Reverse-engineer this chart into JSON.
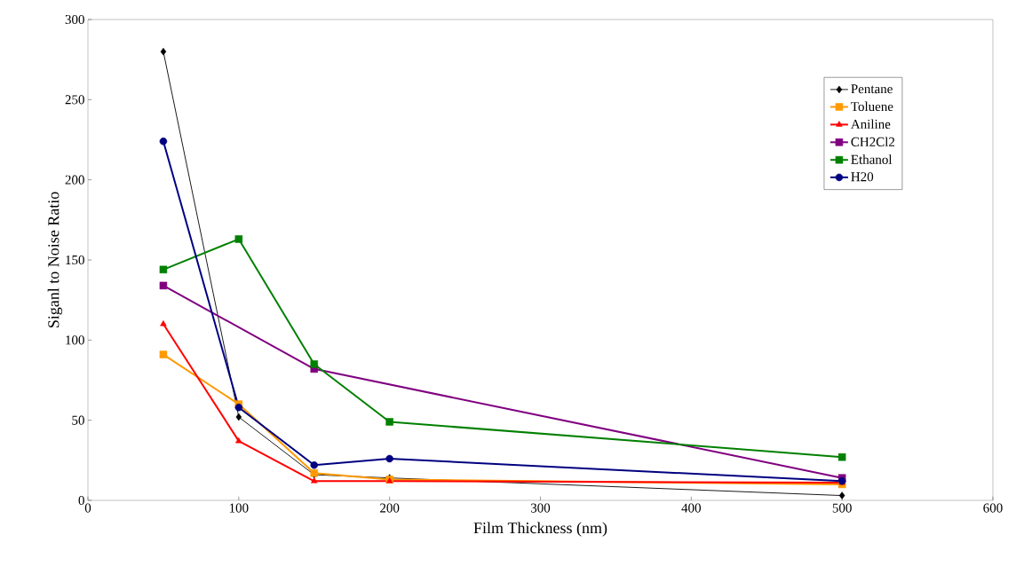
{
  "chart_data": {
    "type": "line",
    "xlabel": "Film Thickness (nm)",
    "ylabel": "Siganl to Noise Ratio",
    "x": [
      50,
      100,
      150,
      200,
      500
    ],
    "series": [
      {
        "name": "Pentane",
        "color": "#000000",
        "marker": "diamond",
        "values": [
          280,
          52,
          16,
          14,
          3
        ]
      },
      {
        "name": "Toluene",
        "color": "#ff9900",
        "marker": "square",
        "values": [
          91,
          60,
          17,
          13,
          10
        ]
      },
      {
        "name": "Aniline",
        "color": "#ff0000",
        "marker": "triangle",
        "values": [
          110,
          37,
          12,
          12,
          11
        ]
      },
      {
        "name": "CH2Cl2",
        "color": "#800080",
        "marker": "square",
        "x": [
          50,
          150,
          500
        ],
        "values": [
          134,
          82,
          14
        ]
      },
      {
        "name": "Ethanol",
        "color": "#008000",
        "marker": "square",
        "values": [
          144,
          163,
          85,
          49,
          27
        ]
      },
      {
        "name": "H20",
        "color": "#000080",
        "marker": "circle",
        "values": [
          224,
          58,
          22,
          26,
          12
        ]
      }
    ],
    "xlim": [
      0,
      600
    ],
    "xticks": [
      0,
      100,
      200,
      300,
      400,
      500,
      600
    ],
    "ylim": [
      0,
      300
    ],
    "yticks": [
      0,
      50,
      100,
      150,
      200,
      250,
      300
    ],
    "grid": false,
    "legend": "top right"
  }
}
